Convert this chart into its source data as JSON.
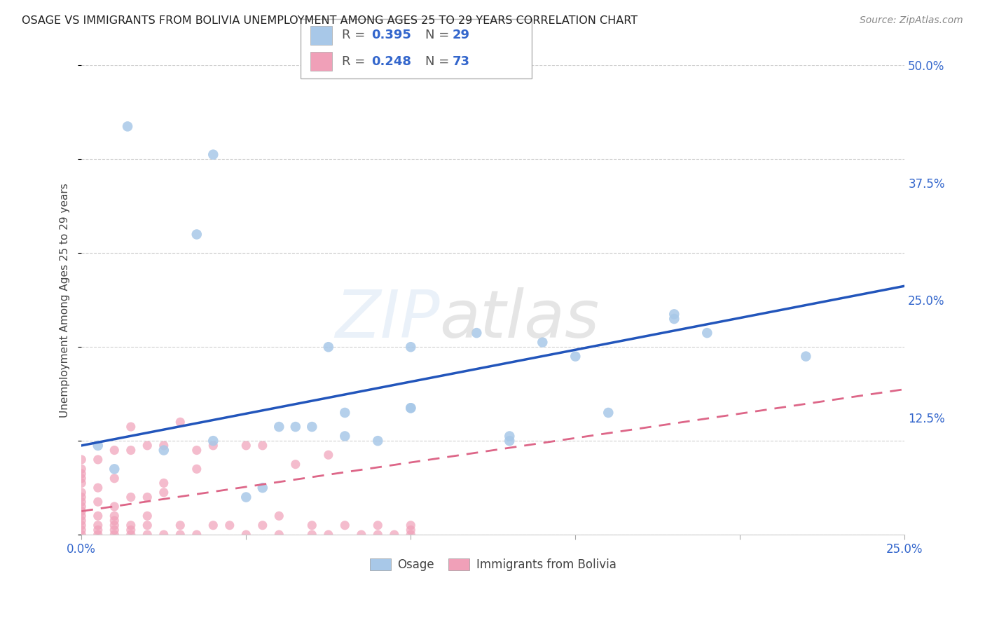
{
  "title": "OSAGE VS IMMIGRANTS FROM BOLIVIA UNEMPLOYMENT AMONG AGES 25 TO 29 YEARS CORRELATION CHART",
  "source": "Source: ZipAtlas.com",
  "ylabel": "Unemployment Among Ages 25 to 29 years",
  "x_ticks": [
    0.0,
    0.05,
    0.1,
    0.15,
    0.2,
    0.25
  ],
  "y_ticks": [
    0.0,
    0.125,
    0.25,
    0.375,
    0.5
  ],
  "xlim": [
    0.0,
    0.25
  ],
  "ylim": [
    0.0,
    0.5
  ],
  "background_color": "#ffffff",
  "grid_color": "#d0d0d0",
  "series1_label": "Osage",
  "series2_label": "Immigrants from Bolivia",
  "series1_color": "#a8c8e8",
  "series2_color": "#f0a0b8",
  "series1_line_color": "#2255bb",
  "series2_line_color": "#dd6688",
  "osage_x": [
    0.014,
    0.04,
    0.08,
    0.1,
    0.16,
    0.19,
    0.22,
    0.005,
    0.01,
    0.025,
    0.05,
    0.065,
    0.07,
    0.09,
    0.12,
    0.13,
    0.14,
    0.15,
    0.18,
    0.035,
    0.06,
    0.08,
    0.1,
    0.18,
    0.1,
    0.055,
    0.075,
    0.04,
    0.13
  ],
  "osage_y": [
    0.435,
    0.405,
    0.13,
    0.135,
    0.13,
    0.215,
    0.19,
    0.095,
    0.07,
    0.09,
    0.04,
    0.115,
    0.115,
    0.1,
    0.215,
    0.1,
    0.205,
    0.19,
    0.235,
    0.32,
    0.115,
    0.105,
    0.135,
    0.23,
    0.2,
    0.05,
    0.2,
    0.1,
    0.105
  ],
  "bolivia_x": [
    0.0,
    0.0,
    0.0,
    0.0,
    0.0,
    0.0,
    0.0,
    0.0,
    0.0,
    0.0,
    0.0,
    0.0,
    0.0,
    0.0,
    0.0,
    0.005,
    0.005,
    0.005,
    0.005,
    0.005,
    0.005,
    0.005,
    0.01,
    0.01,
    0.01,
    0.01,
    0.01,
    0.01,
    0.01,
    0.01,
    0.015,
    0.015,
    0.015,
    0.015,
    0.015,
    0.015,
    0.02,
    0.02,
    0.02,
    0.02,
    0.02,
    0.025,
    0.025,
    0.025,
    0.025,
    0.03,
    0.03,
    0.03,
    0.035,
    0.035,
    0.035,
    0.04,
    0.04,
    0.045,
    0.05,
    0.05,
    0.055,
    0.055,
    0.06,
    0.06,
    0.065,
    0.07,
    0.07,
    0.075,
    0.075,
    0.08,
    0.085,
    0.09,
    0.09,
    0.095,
    0.1,
    0.1,
    0.1
  ],
  "bolivia_y": [
    0.0,
    0.005,
    0.01,
    0.015,
    0.02,
    0.025,
    0.03,
    0.035,
    0.04,
    0.045,
    0.055,
    0.06,
    0.065,
    0.07,
    0.08,
    0.0,
    0.005,
    0.01,
    0.02,
    0.035,
    0.05,
    0.08,
    0.0,
    0.005,
    0.01,
    0.015,
    0.02,
    0.03,
    0.06,
    0.09,
    0.0,
    0.005,
    0.01,
    0.04,
    0.09,
    0.115,
    0.0,
    0.01,
    0.02,
    0.04,
    0.095,
    0.0,
    0.045,
    0.055,
    0.095,
    0.0,
    0.01,
    0.12,
    0.0,
    0.07,
    0.09,
    0.01,
    0.095,
    0.01,
    0.0,
    0.095,
    0.01,
    0.095,
    0.0,
    0.02,
    0.075,
    0.0,
    0.01,
    0.0,
    0.085,
    0.01,
    0.0,
    0.0,
    0.01,
    0.0,
    0.0,
    0.005,
    0.01
  ],
  "osage_line_x0": 0.0,
  "osage_line_y0": 0.095,
  "osage_line_x1": 0.25,
  "osage_line_y1": 0.265,
  "bolivia_line_x0": 0.0,
  "bolivia_line_y0": 0.025,
  "bolivia_line_x1": 0.25,
  "bolivia_line_y1": 0.155
}
